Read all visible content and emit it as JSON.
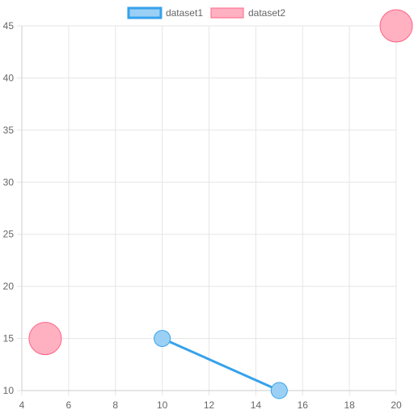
{
  "chart_data": {
    "type": "bubble",
    "x_ticks": [
      4,
      6,
      8,
      10,
      12,
      14,
      16,
      18,
      20
    ],
    "y_ticks": [
      10,
      15,
      20,
      25,
      30,
      35,
      40,
      45
    ],
    "xlim": [
      4,
      20
    ],
    "ylim": [
      10,
      45
    ],
    "grid": true,
    "legend_position": "top",
    "series": [
      {
        "name": "dataset1",
        "line": true,
        "border_color": "#36a2eb",
        "fill_color": "#9ad0f5",
        "points": [
          {
            "x": 10,
            "y": 15,
            "r": 10
          },
          {
            "x": 15,
            "y": 10,
            "r": 10
          }
        ]
      },
      {
        "name": "dataset2",
        "line": false,
        "border_color": "#ff6384",
        "fill_color": "#ffb1c1",
        "points": [
          {
            "x": 5,
            "y": 15,
            "r": 20
          },
          {
            "x": 20,
            "y": 45,
            "r": 20
          }
        ]
      }
    ]
  }
}
